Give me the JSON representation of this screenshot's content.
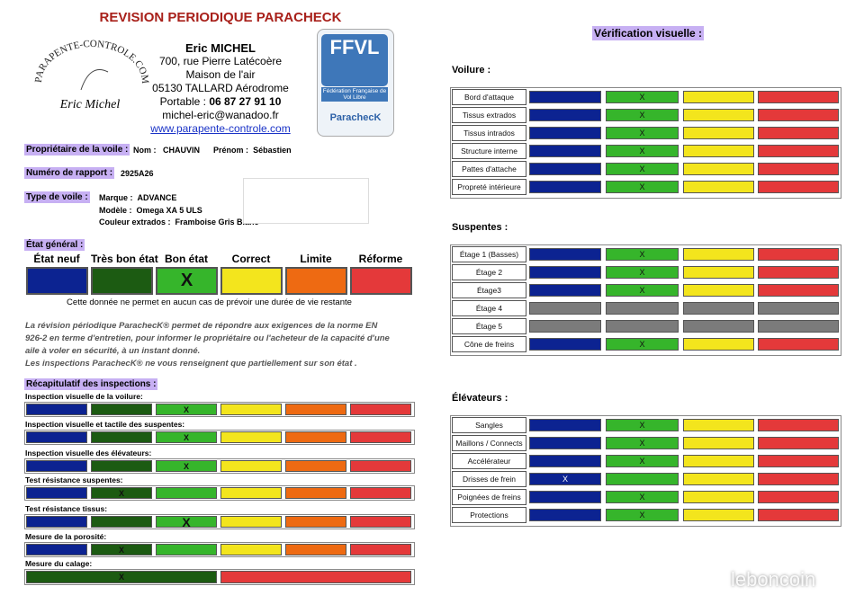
{
  "header": {
    "title": "REVISION PERIODIQUE PARACHECK",
    "logo_text": "PARAPENTE-CONTROLE.COM",
    "signature": "Eric Michel",
    "contact": {
      "name": "Eric MICHEL",
      "lines": [
        "700, rue Pierre Latécoère",
        "Maison de l'air",
        "05130 TALLARD Aérodrome"
      ],
      "phone_label": "Portable :",
      "phone": "06 87 27 91 10",
      "email": "michel-eric@wanadoo.fr",
      "website": "www.parapente-controle.com"
    },
    "badge": {
      "acronym": "FFVL",
      "federation": "Fédération Française de Vol Libre",
      "brand": "ParachecK"
    }
  },
  "owner": {
    "label": "Propriétaire de la voile :",
    "name_label": "Nom :",
    "name": "CHAUVIN",
    "first_name_label": "Prénom :",
    "first_name": "Sébastien"
  },
  "report": {
    "label": "Numéro de rapport :",
    "number": "2925A26"
  },
  "wing": {
    "label": "Type de voile :",
    "fields": [
      {
        "label": "Marque :",
        "value": "ADVANCE"
      },
      {
        "label": "Modèle :",
        "value": "Omega XA 5 ULS"
      },
      {
        "label": "Couleur extrados :",
        "value": "Framboise Gris Blanc"
      }
    ]
  },
  "general_state": {
    "label": "État général :",
    "levels": [
      "État neuf",
      "Très bon état",
      "Bon état",
      "Correct",
      "Limite",
      "Réforme"
    ],
    "colors": [
      "#0c2391",
      "#1c5b12",
      "#36b52b",
      "#f3e51d",
      "#ee6a12",
      "#e4393a"
    ],
    "mark": "X",
    "column": 2,
    "note": "Cette donnée ne permet en aucun cas de prévoir une durée de vie restante"
  },
  "paragraph": [
    "La révision périodique ParachecK® permet de répondre aux exigences de la norme EN",
    "926-2 en terme d'entretien, pour informer le propriétaire ou l'acheteur de la capacité d'une",
    "aile à voler en sécurité, à un instant donné.",
    "Les inspections ParachecK® ne vous renseignent que partiellement sur son état ."
  ],
  "summary": {
    "label": "Récapitulatif des inspections :",
    "rows": [
      {
        "name": "Inspection visuelle de la voilure:",
        "mark": "X",
        "column": 2
      },
      {
        "name": "Inspection visuelle et tactile des suspentes:",
        "mark": "X",
        "column": 2
      },
      {
        "name": "Inspection visuelle des élévateurs:",
        "mark": "X",
        "column": 2
      },
      {
        "name": "Test résistance suspentes:",
        "mark": "X",
        "column": 1
      },
      {
        "name": "Test résistance tissus:",
        "mark": "X",
        "column": 2
      },
      {
        "name": "Mesure de la porosité:",
        "mark": "X",
        "column": 1
      },
      {
        "name": "Mesure du calage:",
        "mark": "X",
        "column": 0,
        "colors": [
          "#1c5b12",
          "#e4393a"
        ]
      }
    ]
  },
  "visual": {
    "title": "Vérification visuelle :",
    "colors": [
      "#0c2391",
      "#36b52b",
      "#f3e51d",
      "#e4393a"
    ],
    "disabled_color": "#7b7b7b",
    "sections": [
      {
        "name": "Voilure :",
        "rows": [
          {
            "name": "Bord d'attaque",
            "mark": "X",
            "column": 1
          },
          {
            "name": "Tissus extrados",
            "mark": "X",
            "column": 1
          },
          {
            "name": "Tissus intrados",
            "mark": "X",
            "column": 1
          },
          {
            "name": "Structure interne",
            "mark": "X",
            "column": 1
          },
          {
            "name": "Pattes d'attache",
            "mark": "X",
            "column": 1
          },
          {
            "name": "Propreté intérieure",
            "mark": "X",
            "column": 1
          }
        ]
      },
      {
        "name": "Suspentes :",
        "rows": [
          {
            "name": "Étage 1 (Basses)",
            "mark": "X",
            "column": 1
          },
          {
            "name": "Étage 2",
            "mark": "X",
            "column": 1
          },
          {
            "name": "Étage3",
            "mark": "X",
            "column": 1
          },
          {
            "name": "Étage 4",
            "disabled": true
          },
          {
            "name": "Étage 5",
            "disabled": true
          },
          {
            "name": "Cône de freins",
            "mark": "X",
            "column": 1
          }
        ]
      },
      {
        "name": "Élévateurs :",
        "rows": [
          {
            "name": "Sangles",
            "mark": "X",
            "column": 1
          },
          {
            "name": "Maillons / Connects",
            "mark": "X",
            "column": 1
          },
          {
            "name": "Accélérateur",
            "mark": "X",
            "column": 1
          },
          {
            "name": "Drisses de frein",
            "mark": "X",
            "column": 0
          },
          {
            "name": "Poignées de freins",
            "mark": "X",
            "column": 1
          },
          {
            "name": "Protections",
            "mark": "X",
            "column": 1
          }
        ]
      }
    ]
  },
  "watermark": "leboncoin"
}
